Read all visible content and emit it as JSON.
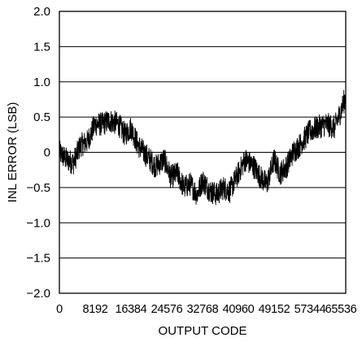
{
  "chart_data": {
    "type": "line",
    "title": "",
    "xlabel": "OUTPUT CODE",
    "ylabel": "INL ERROR (LSB)",
    "xlim": [
      0,
      65536
    ],
    "ylim": [
      -2.0,
      2.0
    ],
    "grid": "horizontal",
    "x_ticks": [
      0,
      8192,
      16384,
      24576,
      32768,
      40960,
      49152,
      57344,
      65536
    ],
    "x_tick_labels": [
      "0",
      "8192",
      "16384",
      "24576",
      "32768",
      "40960",
      "49152",
      "57344",
      "65536"
    ],
    "y_ticks": [
      -2.0,
      -1.5,
      -1.0,
      -0.5,
      0,
      0.5,
      1.0,
      1.5,
      2.0
    ],
    "y_tick_labels": [
      "−2.0",
      "−1.5",
      "−1.0",
      "−0.5",
      "0",
      "0.5",
      "1.0",
      "1.5",
      "2.0"
    ],
    "series": [
      {
        "color": "#000000",
        "band_halfwidth": 0.17,
        "x": [
          0,
          1600,
          3200,
          4800,
          6400,
          8192,
          9800,
          11500,
          13500,
          15000,
          16384,
          18000,
          20000,
          22000,
          24000,
          25500,
          27000,
          28500,
          30000,
          31500,
          32768,
          34500,
          36000,
          37500,
          39000,
          40960,
          42500,
          44500,
          46000,
          47500,
          49152,
          50500,
          52000,
          53500,
          55000,
          57344,
          59000,
          61000,
          63000,
          64500,
          65536
        ],
        "values": [
          0.0,
          -0.1,
          -0.15,
          0.1,
          0.15,
          0.4,
          0.4,
          0.45,
          0.4,
          0.25,
          0.35,
          0.1,
          -0.05,
          -0.2,
          -0.1,
          -0.35,
          -0.3,
          -0.5,
          -0.45,
          -0.6,
          -0.4,
          -0.55,
          -0.6,
          -0.5,
          -0.55,
          -0.3,
          -0.1,
          -0.2,
          -0.35,
          -0.45,
          -0.1,
          -0.3,
          -0.2,
          0.0,
          0.1,
          0.3,
          0.35,
          0.4,
          0.35,
          0.6,
          0.8
        ]
      }
    ]
  }
}
